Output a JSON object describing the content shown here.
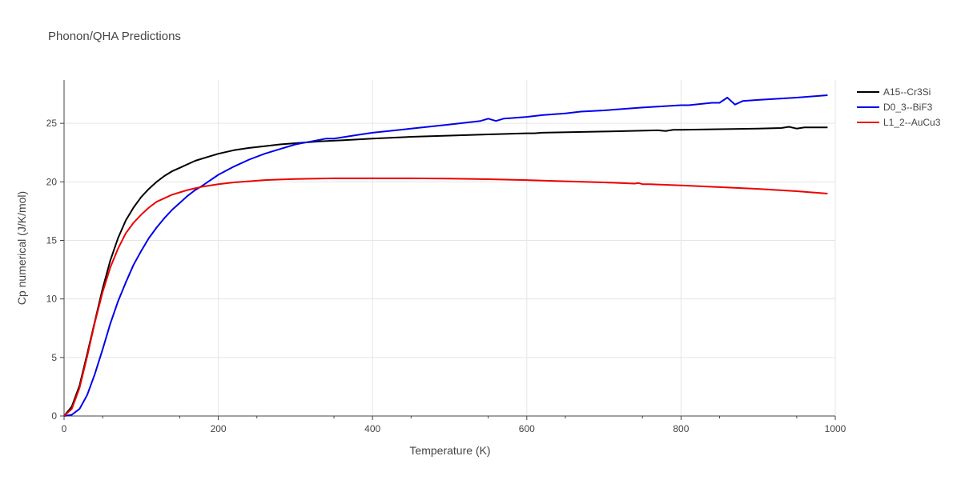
{
  "chart_data": {
    "type": "line",
    "title": "Phonon/QHA Predictions",
    "xlabel": "Temperature (K)",
    "ylabel": "Cp numerical (J/K/mol)",
    "xlim": [
      0,
      1000
    ],
    "ylim": [
      0,
      28.7
    ],
    "xticks": [
      0,
      200,
      400,
      600,
      800,
      1000
    ],
    "yticks": [
      0,
      5,
      10,
      15,
      20,
      25
    ],
    "grid": true,
    "legend_position": "top-right",
    "series": [
      {
        "name": "A15--Cr3Si",
        "color": "#000000",
        "x": [
          0,
          10,
          20,
          30,
          40,
          50,
          60,
          70,
          80,
          90,
          100,
          110,
          120,
          130,
          140,
          150,
          160,
          170,
          180,
          190,
          200,
          220,
          240,
          260,
          280,
          300,
          330,
          360,
          400,
          450,
          500,
          550,
          600,
          610,
          620,
          700,
          770,
          780,
          790,
          800,
          850,
          900,
          930,
          940,
          950,
          960,
          990
        ],
        "y": [
          0,
          0.8,
          2.6,
          5.3,
          8.1,
          10.9,
          13.3,
          15.2,
          16.7,
          17.8,
          18.7,
          19.4,
          20.0,
          20.5,
          20.9,
          21.2,
          21.5,
          21.8,
          22.0,
          22.2,
          22.4,
          22.7,
          22.9,
          23.05,
          23.2,
          23.3,
          23.45,
          23.55,
          23.7,
          23.85,
          23.95,
          24.05,
          24.15,
          24.15,
          24.2,
          24.3,
          24.4,
          24.35,
          24.45,
          24.45,
          24.5,
          24.55,
          24.6,
          24.7,
          24.55,
          24.65,
          24.65
        ]
      },
      {
        "name": "D0_3--BiF3",
        "color": "#0000ee",
        "x": [
          0,
          10,
          20,
          30,
          40,
          50,
          60,
          70,
          80,
          90,
          100,
          110,
          120,
          130,
          140,
          150,
          160,
          170,
          180,
          200,
          220,
          240,
          260,
          280,
          300,
          340,
          350,
          360,
          380,
          400,
          430,
          450,
          500,
          540,
          550,
          560,
          570,
          600,
          620,
          650,
          670,
          700,
          750,
          800,
          810,
          840,
          850,
          860,
          870,
          880,
          900,
          950,
          990
        ],
        "y": [
          0,
          0.1,
          0.6,
          1.8,
          3.6,
          5.7,
          7.9,
          9.8,
          11.4,
          12.9,
          14.1,
          15.2,
          16.1,
          16.9,
          17.6,
          18.2,
          18.8,
          19.3,
          19.7,
          20.6,
          21.3,
          21.9,
          22.4,
          22.8,
          23.2,
          23.7,
          23.7,
          23.8,
          24.0,
          24.2,
          24.4,
          24.55,
          24.9,
          25.2,
          25.4,
          25.2,
          25.4,
          25.55,
          25.7,
          25.85,
          26.0,
          26.1,
          26.35,
          26.55,
          26.55,
          26.75,
          26.75,
          27.2,
          26.6,
          26.9,
          27.0,
          27.2,
          27.4
        ]
      },
      {
        "name": "L1_2--AuCu3",
        "color": "#ee0000",
        "x": [
          0,
          10,
          20,
          30,
          40,
          50,
          60,
          70,
          80,
          90,
          100,
          110,
          120,
          130,
          140,
          150,
          160,
          170,
          180,
          190,
          200,
          220,
          240,
          260,
          280,
          300,
          350,
          400,
          450,
          500,
          550,
          600,
          650,
          700,
          740,
          745,
          750,
          760,
          800,
          850,
          900,
          950,
          990
        ],
        "y": [
          0,
          0.6,
          2.4,
          5.1,
          8.0,
          10.6,
          12.7,
          14.3,
          15.6,
          16.5,
          17.2,
          17.8,
          18.3,
          18.6,
          18.9,
          19.1,
          19.3,
          19.45,
          19.6,
          19.7,
          19.8,
          19.95,
          20.05,
          20.15,
          20.2,
          20.25,
          20.3,
          20.3,
          20.3,
          20.28,
          20.23,
          20.15,
          20.05,
          19.95,
          19.85,
          19.9,
          19.8,
          19.8,
          19.7,
          19.55,
          19.4,
          19.2,
          19.0
        ]
      }
    ]
  }
}
